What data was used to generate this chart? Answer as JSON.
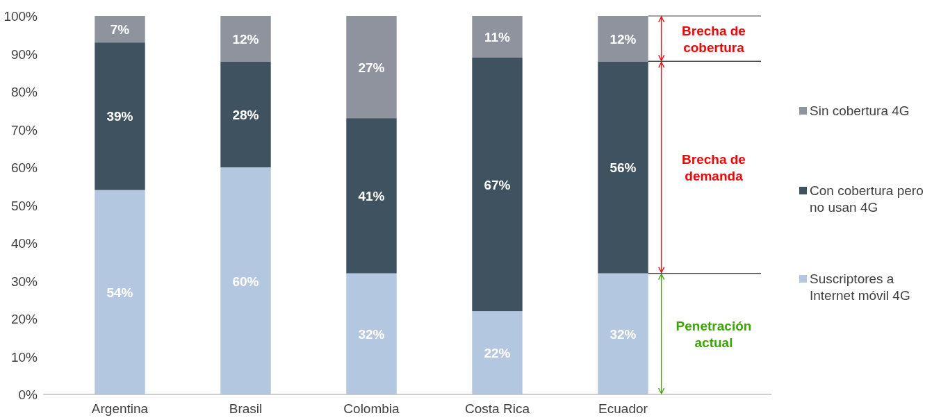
{
  "chart_data": {
    "type": "bar",
    "stacked": true,
    "categories": [
      "Argentina",
      "Brasil",
      "Colombia",
      "Costa Rica",
      "Ecuador"
    ],
    "series": [
      {
        "name": "Suscriptores a Internet móvil 4G",
        "color": "#b4c7e0",
        "values": [
          54,
          60,
          32,
          22,
          32
        ],
        "value_labels": [
          "54%",
          "60%",
          "32%",
          "22%",
          "32%"
        ]
      },
      {
        "name": "Con cobertura pero no usan 4G",
        "color": "#3f5260",
        "values": [
          39,
          28,
          41,
          67,
          56
        ],
        "value_labels": [
          "39%",
          "28%",
          "41%",
          "67%",
          "56%"
        ]
      },
      {
        "name": "Sin cobertura 4G",
        "color": "#8e939e",
        "values": [
          7,
          12,
          27,
          11,
          12
        ],
        "value_labels": [
          "7%",
          "12%",
          "27%",
          "11%",
          "12%"
        ]
      }
    ],
    "ylim": [
      0,
      100
    ],
    "yticks": [
      {
        "value": 0,
        "label": "0%"
      },
      {
        "value": 10,
        "label": "10%"
      },
      {
        "value": 20,
        "label": "20%"
      },
      {
        "value": 30,
        "label": "30%"
      },
      {
        "value": 40,
        "label": "40%"
      },
      {
        "value": 50,
        "label": "50%"
      },
      {
        "value": 60,
        "label": "60%"
      },
      {
        "value": 70,
        "label": "70%"
      },
      {
        "value": 80,
        "label": "80%"
      },
      {
        "value": 90,
        "label": "90%"
      },
      {
        "value": 100,
        "label": "100%"
      }
    ],
    "legend": "right",
    "grid": false,
    "annotations": [
      "Brecha de cobertura",
      "Brecha de demanda",
      "Penetración actual"
    ]
  }
}
